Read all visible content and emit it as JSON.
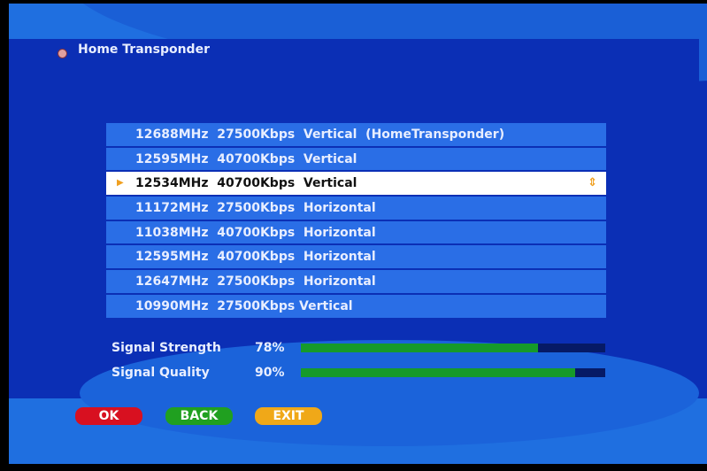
{
  "header": {
    "title": "Home Transponder",
    "icon": "bullet-icon"
  },
  "transponders": [
    "12688MHz  27500Kbps  Vertical  (HomeTransponder)",
    "12595MHz  40700Kbps  Vertical",
    "12534MHz  40700Kbps  Vertical",
    "11172MHz  27500Kbps  Horizontal",
    "11038MHz  40700Kbps  Horizontal",
    "12595MHz  40700Kbps  Horizontal",
    "12647MHz  27500Kbps  Horizontal",
    "10990MHz  27500Kbps Vertical"
  ],
  "selected_index": 2,
  "signal": {
    "strength_label": "Signal Strength",
    "strength_value": "78%",
    "strength_fraction": 0.78,
    "quality_label": "Signal Quality",
    "quality_value": "90%",
    "quality_fraction": 0.9
  },
  "buttons": {
    "ok": "OK",
    "back": "BACK",
    "exit": "EXIT"
  },
  "colors": {
    "ok": "#d81020",
    "back": "#20a020",
    "exit": "#f0a818",
    "bar_fill": "#169a2a"
  }
}
